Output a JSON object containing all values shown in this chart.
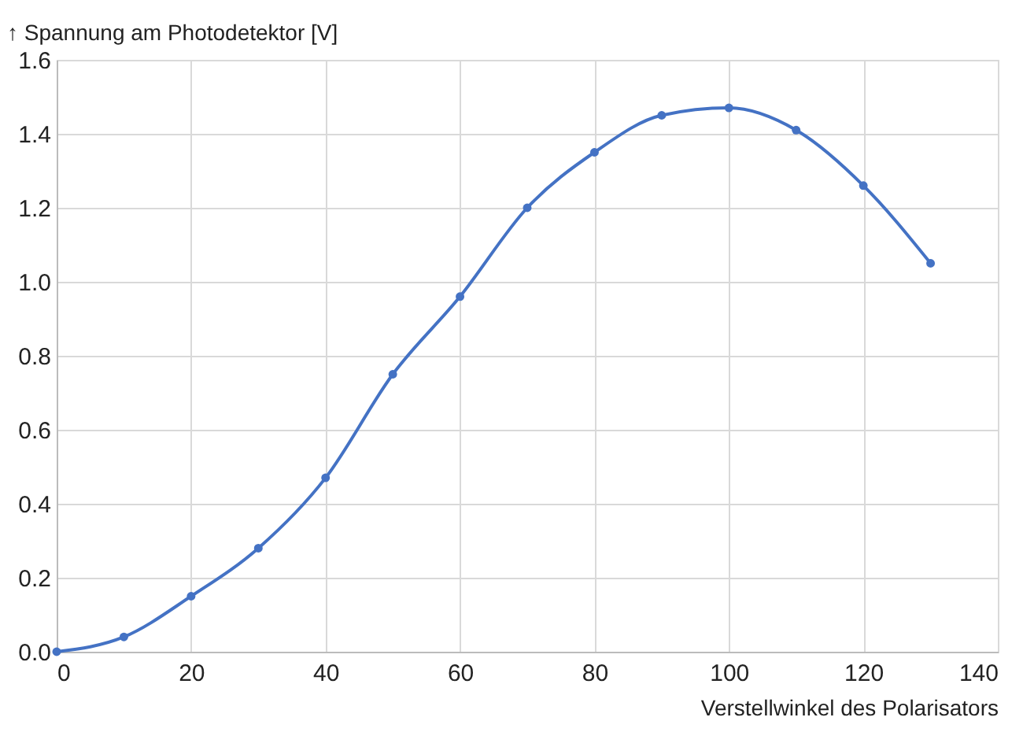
{
  "chart_data": {
    "type": "line",
    "xlabel": "Verstellwinkel des Polarisators",
    "ylabel": "↑ Spannung am Photodetektor [V]",
    "x": [
      0,
      10,
      20,
      30,
      40,
      50,
      60,
      70,
      80,
      90,
      100,
      110,
      120,
      130
    ],
    "series": [
      {
        "color": "#4472c4",
        "values": [
          0.0,
          0.04,
          0.15,
          0.28,
          0.47,
          0.75,
          0.96,
          1.2,
          1.35,
          1.45,
          1.47,
          1.41,
          1.26,
          1.05
        ]
      }
    ],
    "xlim": [
      0,
      140
    ],
    "xticks": [
      0,
      20,
      40,
      60,
      80,
      100,
      120,
      140
    ],
    "ylim": [
      0,
      1.6
    ],
    "yticks": [
      {
        "value": 0,
        "label": "0.0"
      },
      {
        "value": 0.2,
        "label": "0.2"
      },
      {
        "value": 0.4,
        "label": "0.4"
      },
      {
        "value": 0.6,
        "label": "0.6"
      },
      {
        "value": 0.8,
        "label": "0.8"
      },
      {
        "value": 1.0,
        "label": "1.0"
      },
      {
        "value": 1.2,
        "label": "1.2"
      },
      {
        "value": 1.4,
        "label": "1.4"
      },
      {
        "value": 1.6,
        "label": "1.6"
      }
    ],
    "grid": true,
    "marker": "circle",
    "line_style": "solid"
  }
}
